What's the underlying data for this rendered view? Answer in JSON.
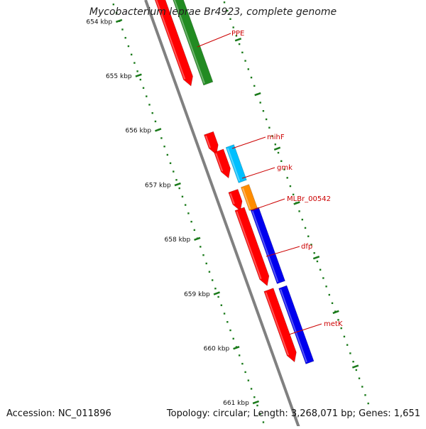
{
  "title": "Mycobacterium leprae Br4923, complete genome",
  "footer": {
    "accession": "Accession: NC_011896",
    "summary": "Topology: circular; Length: 3,268,071 bp; Genes: 1,651"
  },
  "colors": {
    "backbone": "#808080",
    "tick": "#1a7a1a",
    "gene_red": "#ff0000",
    "gene_green": "#228b22",
    "gene_cyan": "#00bfff",
    "gene_orange": "#ff8c00",
    "gene_blue": "#0000ee",
    "label_red": "#cc0000"
  },
  "scale": {
    "ticks": [
      {
        "label": "654 kbp",
        "kbp": 654
      },
      {
        "label": "655 kbp",
        "kbp": 655
      },
      {
        "label": "656 kbp",
        "kbp": 656
      },
      {
        "label": "657 kbp",
        "kbp": 657
      },
      {
        "label": "658 kbp",
        "kbp": 658
      },
      {
        "label": "659 kbp",
        "kbp": 659
      },
      {
        "label": "660 kbp",
        "kbp": 660
      },
      {
        "label": "661 kbp",
        "kbp": 661
      }
    ]
  },
  "features": [
    {
      "name": "PPE",
      "strand": "forward",
      "color": "gene_green"
    },
    {
      "name": "mihF",
      "strand": "reverse",
      "color": "gene_red"
    },
    {
      "name": "gmk",
      "strand": "forward",
      "color": "gene_cyan"
    },
    {
      "name": "MLBr_00542",
      "strand": "forward",
      "color": "gene_orange"
    },
    {
      "name": "dfp",
      "strand": "forward",
      "color": "gene_blue"
    },
    {
      "name": "metK",
      "strand": "forward",
      "color": "gene_blue"
    }
  ]
}
